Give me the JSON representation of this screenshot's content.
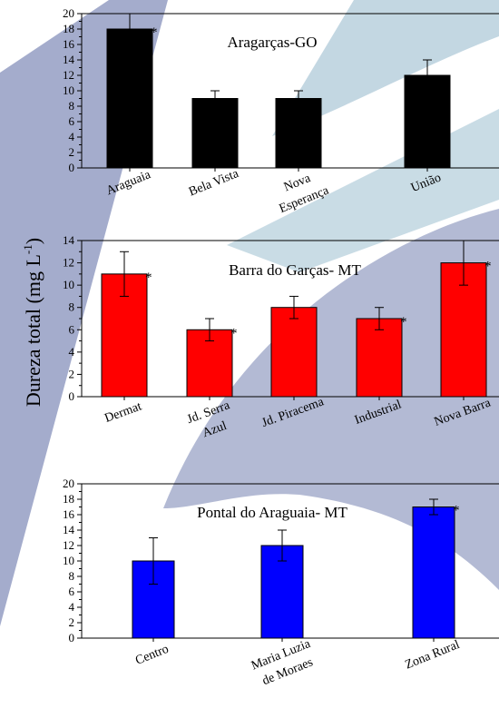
{
  "ylabel": "Dureza total (mg L",
  "ylabel_exp": "-1",
  "ylabel_close": ")",
  "colors": {
    "background": "#ffffff",
    "watermark_main": "#9aa3c6",
    "watermark_light": "#bcd3df",
    "bar_panel_1": "#000000",
    "bar_panel_2": "#ff0000",
    "bar_panel_3": "#0000ff",
    "axis": "#000000"
  },
  "chart_data": [
    {
      "type": "bar",
      "title": "Aragarças-GO",
      "categories": [
        "Araguaia",
        "Bela Vista",
        "Nova Esperança",
        "União"
      ],
      "category_lines": [
        [
          "Araguaia"
        ],
        [
          "Bela Vista"
        ],
        [
          "Nova",
          "Esperança"
        ],
        [
          "União"
        ]
      ],
      "values": [
        18,
        9,
        9,
        12
      ],
      "errors": [
        2,
        1,
        1,
        2
      ],
      "significant": [
        true,
        false,
        false,
        false
      ],
      "significance_mark": "*",
      "ylim": [
        0,
        20
      ],
      "yticks": [
        0,
        2,
        4,
        6,
        8,
        10,
        12,
        14,
        16,
        18,
        20
      ],
      "bar_color": "#000000"
    },
    {
      "type": "bar",
      "title": "Barra do Garças- MT",
      "categories": [
        "Dermat",
        "Jd. Serra Azul",
        "Jd. Piracema",
        "Industrial",
        "Nova Barra"
      ],
      "category_lines": [
        [
          "Dermat"
        ],
        [
          "Jd. Serra",
          "Azul"
        ],
        [
          "Jd. Piracema"
        ],
        [
          "Industrial"
        ],
        [
          "Nova Barra"
        ]
      ],
      "values": [
        11,
        6,
        8,
        7,
        12
      ],
      "errors": [
        2,
        1,
        1,
        1,
        2
      ],
      "significant": [
        true,
        true,
        false,
        true,
        true
      ],
      "significance_mark": "*",
      "ylim": [
        0,
        14
      ],
      "yticks": [
        0,
        2,
        4,
        6,
        8,
        10,
        12,
        14
      ],
      "bar_color": "#ff0000"
    },
    {
      "type": "bar",
      "title": "Pontal do Araguaia- MT",
      "categories": [
        "Centro",
        "Maria Luzia de Moraes",
        "Zona Rural"
      ],
      "category_lines": [
        [
          "Centro"
        ],
        [
          "Maria Luzia",
          "de Moraes"
        ],
        [
          "Zona Rural"
        ]
      ],
      "values": [
        10,
        12,
        17
      ],
      "errors": [
        3,
        2,
        1
      ],
      "significant": [
        false,
        false,
        true
      ],
      "significance_mark": "*",
      "ylim": [
        0,
        20
      ],
      "yticks": [
        0,
        2,
        4,
        6,
        8,
        10,
        12,
        14,
        16,
        18,
        20
      ],
      "bar_color": "#0000ff"
    }
  ]
}
